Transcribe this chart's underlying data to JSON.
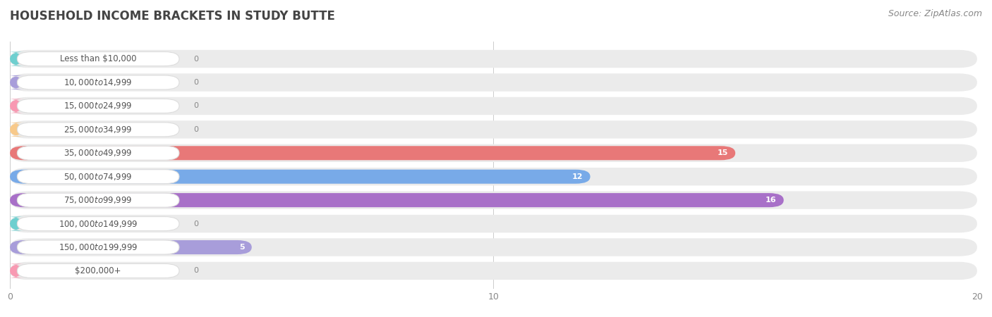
{
  "title": "HOUSEHOLD INCOME BRACKETS IN STUDY BUTTE",
  "source": "Source: ZipAtlas.com",
  "categories": [
    "Less than $10,000",
    "$10,000 to $14,999",
    "$15,000 to $24,999",
    "$25,000 to $34,999",
    "$35,000 to $49,999",
    "$50,000 to $74,999",
    "$75,000 to $99,999",
    "$100,000 to $149,999",
    "$150,000 to $199,999",
    "$200,000+"
  ],
  "values": [
    0,
    0,
    0,
    0,
    15,
    12,
    16,
    0,
    5,
    0
  ],
  "bar_colors": [
    "#6ecfcf",
    "#a89dda",
    "#f899b2",
    "#f8c98a",
    "#e87878",
    "#78aae8",
    "#a870c8",
    "#6ecfcf",
    "#a89dda",
    "#f899b2"
  ],
  "xlim": [
    0,
    20
  ],
  "xticks": [
    0,
    10,
    20
  ],
  "background_color": "#ffffff",
  "bg_bar_color": "#ebebeb",
  "label_bg_color": "#ffffff",
  "label_text_color": "#555555",
  "value_text_color": "#ffffff",
  "zero_text_color": "#888888",
  "title_fontsize": 12,
  "source_fontsize": 9,
  "label_fontsize": 8.5,
  "value_fontsize": 8
}
